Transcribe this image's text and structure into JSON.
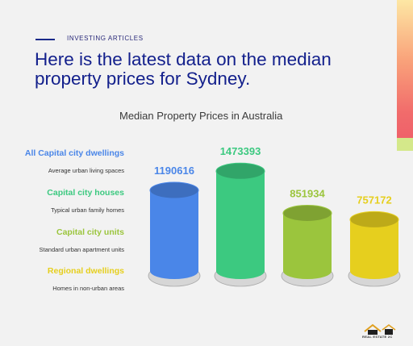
{
  "kicker": "INVESTING ARTICLES",
  "headline": "Here is the latest data on the median property prices for Sydney.",
  "brand": "REAL ESTATE 2C",
  "colors": {
    "accent": "#13208c",
    "page_bg": "#f2f2f2"
  },
  "chart_data": {
    "type": "bar",
    "title": "Median Property Prices in Australia",
    "xlabel": "",
    "ylabel": "",
    "ylim": [
      0,
      1700000
    ],
    "grid": false,
    "legend_placement": "left",
    "series": [
      {
        "name": "All Capital city dwellings",
        "description": "Average urban living spaces",
        "value": 1190616,
        "label": "1190616",
        "color": "#4a86e8"
      },
      {
        "name": "Capital city houses",
        "description": "Typical urban family homes",
        "value": 1473393,
        "label": "1473393",
        "color": "#3cc980"
      },
      {
        "name": "Capital city units",
        "description": "Standard urban apartment units",
        "value": 851934,
        "label": "851934",
        "color": "#9bc53d"
      },
      {
        "name": "Regional dwellings",
        "description": "Homes in non-urban areas",
        "value": 757172,
        "label": "757172",
        "color": "#e6cf1e"
      }
    ]
  }
}
